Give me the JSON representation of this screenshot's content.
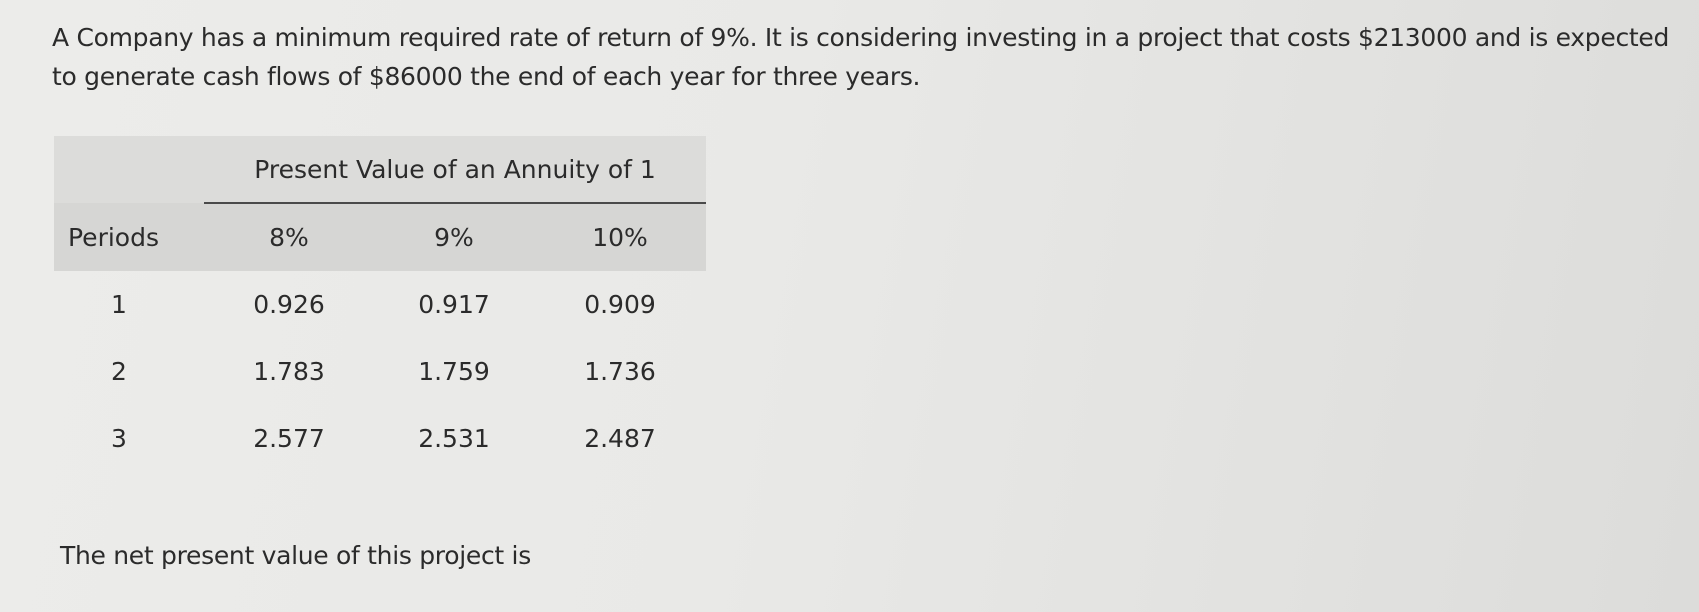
{
  "question": "A Company has a minimum required rate of return of 9%. It is considering investing in a project that costs $213000 and is expected to generate cash flows of $86000 the end of each year for three years.",
  "table": {
    "title": "Present Value of an Annuity of 1",
    "headers": [
      "Periods",
      "8%",
      "9%",
      "10%"
    ],
    "rows": [
      [
        "1",
        "0.926",
        "0.917",
        "0.909"
      ],
      [
        "2",
        "1.783",
        "1.759",
        "1.736"
      ],
      [
        "3",
        "2.577",
        "2.531",
        "2.487"
      ]
    ]
  },
  "conclusion": "The net present value of this project is"
}
